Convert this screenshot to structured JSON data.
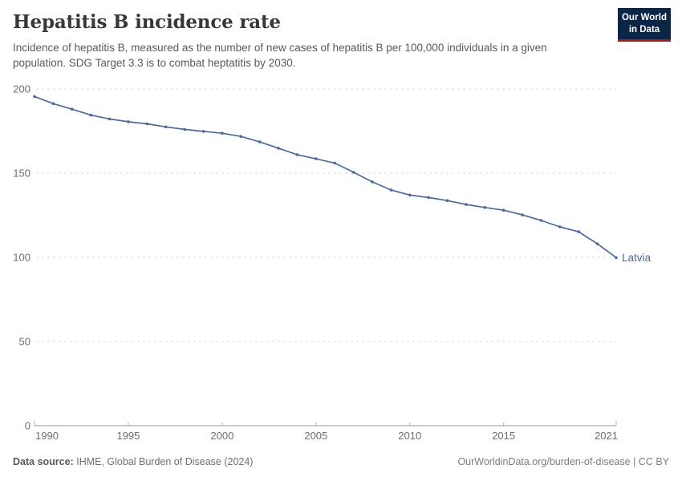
{
  "header": {
    "title": "Hepatitis B incidence rate",
    "subtitle": "Incidence of hepatitis B, measured as the number of new cases of hepatitis B per 100,000 individuals in a given population. SDG Target 3.3 is to combat heptatitis by 2030.",
    "logo": {
      "line1": "Our World",
      "line2": "in Data",
      "bg_color": "#0a2545",
      "accent_color": "#9e1f28"
    }
  },
  "chart_data": {
    "type": "line",
    "title": "Hepatitis B incidence rate",
    "xlabel": "",
    "ylabel": "",
    "xlim": [
      1990,
      2021
    ],
    "ylim": [
      0,
      200
    ],
    "x_ticks": [
      1990,
      1995,
      2000,
      2005,
      2010,
      2015,
      2021
    ],
    "y_ticks": [
      0,
      50,
      100,
      150,
      200
    ],
    "grid": "horizontal-dashed",
    "legend_position": "end-of-line-label",
    "series": [
      {
        "name": "Latvia",
        "color": "#4c6a9c",
        "x": [
          1990,
          1991,
          1992,
          1993,
          1994,
          1995,
          1996,
          1997,
          1998,
          1999,
          2000,
          2001,
          2002,
          2003,
          2004,
          2005,
          2006,
          2007,
          2008,
          2009,
          2010,
          2011,
          2012,
          2013,
          2014,
          2015,
          2016,
          2017,
          2018,
          2019,
          2020,
          2021
        ],
        "values": [
          195.5,
          191.3,
          188.0,
          184.5,
          182.2,
          180.5,
          179.3,
          177.5,
          176.0,
          174.8,
          173.7,
          171.8,
          168.6,
          164.8,
          161.0,
          158.5,
          156.0,
          150.5,
          144.8,
          140.0,
          137.0,
          135.5,
          133.7,
          131.4,
          129.6,
          128.0,
          125.2,
          121.9,
          118.1,
          115.2,
          108.0,
          99.8
        ]
      }
    ],
    "end_label": "Latvia",
    "colors": {
      "gridline": "#dadada",
      "axis_line": "#999999",
      "tick_mark": "#b0b0b0",
      "axis_label": "#6e6e6e"
    }
  },
  "footer": {
    "source_label": "Data source:",
    "source_text": "IHME, Global Burden of Disease (2024)",
    "link_text": "OurWorldinData.org/burden-of-disease | CC BY"
  }
}
